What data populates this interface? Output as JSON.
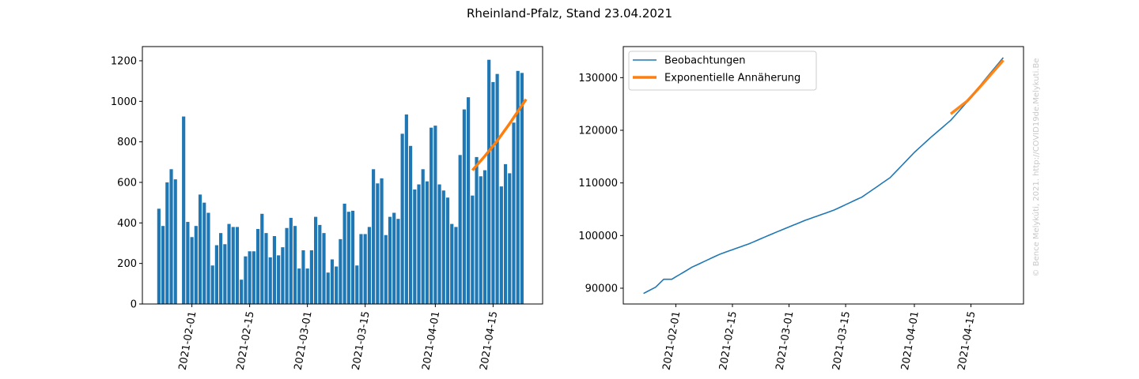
{
  "figure": {
    "title": "Rheinland-Pfalz, Stand 23.04.2021",
    "watermark": "© Bence Melykúti, 2021. http://COVID19de.Melykuti.Be"
  },
  "chart_data": [
    {
      "type": "bar",
      "x_start": "2021-01-24",
      "x_end": "2021-04-23",
      "xlim": [
        "2021-01-20",
        "2021-04-27"
      ],
      "ylim": [
        0,
        1270
      ],
      "x_ticks": [
        "2021-02-01",
        "2021-02-15",
        "2021-03-01",
        "2021-03-15",
        "2021-04-01",
        "2021-04-15"
      ],
      "y_ticks": [
        0,
        200,
        400,
        600,
        800,
        1000,
        1200
      ],
      "bar_color": "#1f77b4",
      "values": [
        470,
        385,
        600,
        665,
        615,
        0,
        925,
        405,
        330,
        385,
        540,
        500,
        450,
        190,
        290,
        350,
        295,
        395,
        380,
        380,
        120,
        235,
        260,
        260,
        370,
        445,
        350,
        230,
        335,
        240,
        280,
        375,
        425,
        385,
        175,
        265,
        175,
        265,
        430,
        390,
        350,
        155,
        220,
        185,
        320,
        495,
        455,
        460,
        190,
        345,
        345,
        380,
        665,
        595,
        620,
        340,
        430,
        450,
        420,
        840,
        935,
        780,
        565,
        590,
        665,
        605,
        870,
        880,
        590,
        560,
        525,
        395,
        380,
        735,
        960,
        1020,
        535,
        725,
        630,
        660,
        1205,
        1095,
        1135,
        580,
        690,
        645,
        895,
        1150,
        1140
      ],
      "fit": {
        "color": "#ff7f0e",
        "x": [
          "2021-04-10",
          "2021-04-13",
          "2021-04-16",
          "2021-04-19",
          "2021-04-23"
        ],
        "y": [
          660,
          730,
          805,
          890,
          1010
        ]
      }
    },
    {
      "type": "line",
      "x_start": "2021-01-24",
      "x_end": "2021-04-23",
      "xlim": [
        "2021-01-19",
        "2021-04-28"
      ],
      "ylim": [
        87000,
        135900
      ],
      "x_ticks": [
        "2021-02-01",
        "2021-02-15",
        "2021-03-01",
        "2021-03-15",
        "2021-04-01",
        "2021-04-15"
      ],
      "y_ticks": [
        90000,
        100000,
        110000,
        120000,
        130000
      ],
      "legend": {
        "placement": "top-left"
      },
      "series": [
        {
          "name": "Beobachtungen",
          "color": "#1f77b4",
          "anchors_x": [
            "2021-01-24",
            "2021-01-27",
            "2021-01-29",
            "2021-01-31",
            "2021-02-05",
            "2021-02-12",
            "2021-02-19",
            "2021-02-26",
            "2021-03-05",
            "2021-03-12",
            "2021-03-19",
            "2021-03-26",
            "2021-04-01",
            "2021-04-05",
            "2021-04-10",
            "2021-04-15",
            "2021-04-18",
            "2021-04-23"
          ],
          "anchors_y": [
            89000,
            90200,
            91700,
            91700,
            94000,
            96500,
            98400,
            100700,
            102900,
            104800,
            107300,
            111000,
            115800,
            118600,
            121900,
            126200,
            129200,
            133800
          ]
        },
        {
          "name": "Exponentielle Annäherung",
          "color": "#ff7f0e",
          "anchors_x": [
            "2021-04-10",
            "2021-04-14",
            "2021-04-18",
            "2021-04-23"
          ],
          "anchors_y": [
            123100,
            125500,
            128900,
            133300
          ]
        }
      ]
    }
  ]
}
